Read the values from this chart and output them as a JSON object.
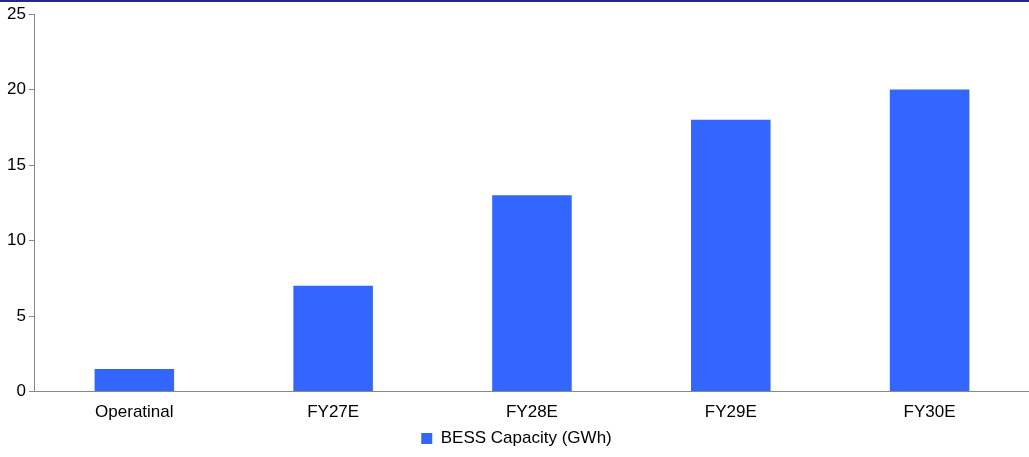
{
  "chart_data": {
    "type": "bar",
    "categories": [
      "Operatinal",
      "FY27E",
      "FY28E",
      "FY29E",
      "FY30E"
    ],
    "series": [
      {
        "name": "BESS Capacity (GWh)",
        "color": "#3366ff",
        "values": [
          1.5,
          7,
          13,
          18,
          20
        ]
      }
    ],
    "ylim": [
      0,
      25
    ],
    "yticks": [
      0,
      5,
      10,
      15,
      20,
      25
    ],
    "grid": false,
    "legend": "bottom"
  }
}
